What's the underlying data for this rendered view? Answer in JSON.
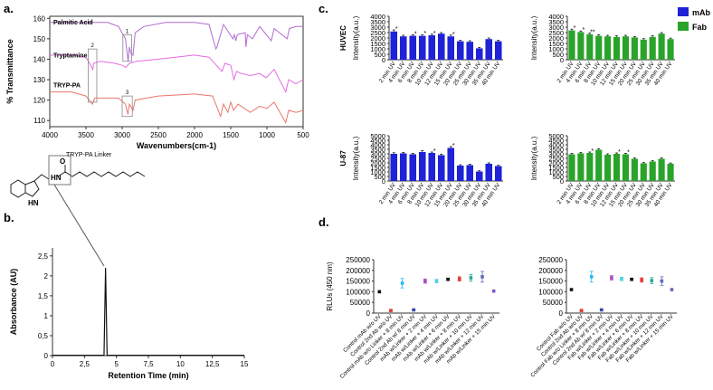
{
  "panel_labels": {
    "a": "a.",
    "b": "b.",
    "c": "c.",
    "d": "d."
  },
  "legend": [
    {
      "label": "mAb",
      "color": "#1f22d6"
    },
    {
      "label": "Fab",
      "color": "#2aa32a"
    }
  ],
  "colors": {
    "mab": "#1f22d6",
    "fab": "#2aa32a",
    "ftir_pa": "#b26bd1",
    "ftir_tryp": "#e36be0",
    "ftir_tryppa": "#e9776b"
  },
  "chart_data": [
    {
      "id": "ftir",
      "type": "line",
      "xlabel": "Wavenumbers(cm-1)",
      "ylabel": "% Transmittance",
      "xticks": [
        4000,
        3500,
        3000,
        2500,
        2000,
        1500,
        1000,
        500
      ],
      "yticks": [
        110,
        120,
        130,
        140,
        150,
        160
      ],
      "xlim": [
        4000,
        500
      ],
      "ylim": [
        107,
        161
      ],
      "series": [
        {
          "name": "Palmitic Acid",
          "color": "#b26bd1",
          "points": [
            [
              4000,
              158
            ],
            [
              3600,
              158
            ],
            [
              3200,
              158
            ],
            [
              3050,
              156
            ],
            [
              2955,
              150
            ],
            [
              2918,
              139
            ],
            [
              2900,
              146
            ],
            [
              2880,
              143
            ],
            [
              2850,
              142
            ],
            [
              2820,
              153
            ],
            [
              2700,
              156
            ],
            [
              2400,
              158
            ],
            [
              2000,
              158
            ],
            [
              1800,
              157
            ],
            [
              1705,
              145
            ],
            [
              1690,
              146
            ],
            [
              1600,
              157
            ],
            [
              1470,
              150
            ],
            [
              1450,
              152
            ],
            [
              1430,
              149
            ],
            [
              1410,
              152
            ],
            [
              1300,
              153
            ],
            [
              1290,
              146
            ],
            [
              1270,
              152
            ],
            [
              1200,
              150
            ],
            [
              1100,
              156
            ],
            [
              940,
              149
            ],
            [
              900,
              155
            ],
            [
              720,
              150
            ],
            [
              690,
              155
            ],
            [
              600,
              156
            ],
            [
              500,
              156
            ]
          ]
        },
        {
          "name": "Tryptamine",
          "color": "#e36be0",
          "points": [
            [
              4000,
              142
            ],
            [
              3700,
              142
            ],
            [
              3500,
              141
            ],
            [
              3450,
              138
            ],
            [
              3405,
              135
            ],
            [
              3395,
              138
            ],
            [
              3300,
              139
            ],
            [
              3100,
              138
            ],
            [
              3000,
              137
            ],
            [
              2950,
              136
            ],
            [
              2900,
              138
            ],
            [
              2800,
              139
            ],
            [
              2500,
              140
            ],
            [
              2000,
              142
            ],
            [
              1800,
              141
            ],
            [
              1620,
              134
            ],
            [
              1580,
              138
            ],
            [
              1500,
              137
            ],
            [
              1455,
              130
            ],
            [
              1420,
              134
            ],
            [
              1350,
              133
            ],
            [
              1230,
              132
            ],
            [
              1100,
              133
            ],
            [
              1010,
              131
            ],
            [
              900,
              135
            ],
            [
              740,
              124
            ],
            [
              700,
              130
            ],
            [
              600,
              128
            ],
            [
              500,
              130
            ]
          ]
        },
        {
          "name": "TRYP-PA",
          "color": "#e9776b",
          "points": [
            [
              4000,
              124
            ],
            [
              3700,
              124
            ],
            [
              3500,
              122
            ],
            [
              3410,
              118
            ],
            [
              3380,
              121
            ],
            [
              3300,
              121
            ],
            [
              3050,
              121
            ],
            [
              2955,
              118
            ],
            [
              2920,
              113
            ],
            [
              2900,
              118
            ],
            [
              2850,
              115
            ],
            [
              2820,
              120
            ],
            [
              2500,
              122
            ],
            [
              2000,
              123
            ],
            [
              1750,
              122
            ],
            [
              1640,
              112
            ],
            [
              1600,
              118
            ],
            [
              1540,
              114
            ],
            [
              1500,
              119
            ],
            [
              1460,
              115
            ],
            [
              1400,
              118
            ],
            [
              1230,
              114
            ],
            [
              1100,
              117
            ],
            [
              1000,
              116
            ],
            [
              900,
              119
            ],
            [
              740,
              109
            ],
            [
              700,
              115
            ],
            [
              600,
              114
            ],
            [
              500,
              115
            ]
          ]
        }
      ],
      "annotations": [
        "1",
        "2",
        "3"
      ]
    },
    {
      "id": "hplc",
      "type": "line",
      "xlabel": "Retention Time (min)",
      "ylabel": "Absorbance (AU)",
      "xticks": [
        "0",
        "2,5",
        "5",
        "7,5",
        "10",
        "12,5",
        "15"
      ],
      "yticks": [
        "0",
        "0,5",
        "1",
        "1,5",
        "2",
        "2,5"
      ],
      "xlim": [
        0,
        15
      ],
      "ylim": [
        0,
        2.7
      ],
      "peak": {
        "x": 4.15,
        "y": 2.2
      },
      "compound_label": "TRYP-PA Linker"
    },
    {
      "id": "huvec-mab",
      "type": "bar",
      "row_label": "HUVEC",
      "ylabel": "Intensity(a.u.)",
      "color": "#1f22d6",
      "ylim": [
        0,
        4000
      ],
      "yticks": [
        "0",
        "500",
        "1000",
        "1500",
        "2000",
        "2500",
        "3000",
        "3500",
        "4000"
      ],
      "categories": [
        "2 min UV",
        "4 min UV",
        "6 min UV",
        "8 min UV",
        "10 min UV",
        "12 min UV",
        "15 min UV",
        "20 min UV",
        "25 min UV",
        "30 min UV",
        "35 min UV",
        "40 min UV"
      ],
      "values": [
        2600,
        2150,
        2200,
        2200,
        2250,
        2400,
        2150,
        1700,
        1650,
        1050,
        1900,
        1700
      ],
      "errors": [
        150,
        100,
        100,
        120,
        100,
        100,
        120,
        90,
        100,
        80,
        100,
        90
      ],
      "marks": [
        "*",
        "",
        "*",
        "*",
        "*",
        "",
        "*",
        "",
        "",
        "",
        "",
        ""
      ]
    },
    {
      "id": "huvec-fab",
      "type": "bar",
      "ylabel": "Intensity(a.u.)",
      "color": "#2aa32a",
      "ylim": [
        0,
        4000
      ],
      "yticks": [
        "0",
        "500",
        "1000",
        "1500",
        "2000",
        "2500",
        "3000",
        "3500",
        "4000"
      ],
      "categories": [
        "2 min UV",
        "4 min UV",
        "6 min UV",
        "8 min UV",
        "10 min UV",
        "12 min UV",
        "15 min UV",
        "20 min UV",
        "25 min UV",
        "30 min UV",
        "35 min UV",
        "40 min UV"
      ],
      "values": [
        2700,
        2550,
        2350,
        2200,
        2150,
        2100,
        2150,
        2050,
        1850,
        2100,
        2400,
        1900
      ],
      "errors": [
        120,
        100,
        100,
        100,
        100,
        100,
        100,
        90,
        90,
        100,
        100,
        90
      ],
      "marks": [
        "*",
        "*",
        "**",
        "",
        "",
        "",
        "",
        "",
        "",
        "",
        "",
        ""
      ]
    },
    {
      "id": "u87-mab",
      "type": "bar",
      "row_label": "U-87",
      "ylabel": "Intensity(a.u.)",
      "color": "#1f22d6",
      "ylim": [
        0,
        5000
      ],
      "yticks": [
        "0",
        "500",
        "1000",
        "1500",
        "2000",
        "2500",
        "3000",
        "3500",
        "4000",
        "4500",
        "5000"
      ],
      "categories": [
        "2 min UV",
        "4 min UV",
        "6 min UV",
        "8 min UV",
        "10 min UV",
        "12 min UV",
        "15 min UV",
        "20 min UV",
        "25 min UV",
        "30 min UV",
        "35 min UV",
        "40 min UV"
      ],
      "values": [
        3000,
        3050,
        2950,
        3200,
        3100,
        2850,
        3650,
        1700,
        1750,
        1050,
        1900,
        1650
      ],
      "errors": [
        120,
        100,
        100,
        150,
        100,
        120,
        150,
        100,
        100,
        80,
        100,
        90
      ],
      "marks": [
        "",
        "",
        "",
        "",
        "*",
        "",
        "*",
        "",
        "",
        "",
        "",
        ""
      ]
    },
    {
      "id": "u87-fab",
      "type": "bar",
      "ylabel": "Intensity(a.u.)",
      "color": "#2aa32a",
      "ylim": [
        0,
        5000
      ],
      "yticks": [
        "0",
        "500",
        "1000",
        "1500",
        "2000",
        "2500",
        "3000",
        "3500",
        "4000",
        "4500",
        "5000"
      ],
      "categories": [
        "2 min UV",
        "4 min UV",
        "6 min UV",
        "8 min UV",
        "10 min UV",
        "12 min UV",
        "15 min UV",
        "20 min UV",
        "25 min UV",
        "30 min UV",
        "35 min UV",
        "40 min UV"
      ],
      "values": [
        2950,
        3050,
        3100,
        3450,
        2900,
        3000,
        2950,
        2450,
        1950,
        2150,
        2450,
        1900
      ],
      "errors": [
        100,
        100,
        100,
        120,
        100,
        100,
        100,
        100,
        90,
        90,
        100,
        90
      ],
      "marks": [
        "",
        "",
        "*",
        "",
        "",
        "*",
        "*",
        "",
        "",
        "",
        "",
        ""
      ]
    },
    {
      "id": "rlu-mab",
      "type": "scatter",
      "ylabel": "RLUs (450 nm)",
      "ylim": [
        0,
        250000
      ],
      "yticks": [
        "0",
        "50000",
        "100000",
        "150000",
        "200000",
        "250000"
      ],
      "categories": [
        "Control mAb w/o UV",
        "Control 2nd Ab w/o UV",
        "Control mAb w/o Linker + 8 min UV",
        "Control 2nd Ab w/ 8 min UV",
        "mAb w/Linker + 2 min UV",
        "mAb w/Linker + 4 min UV",
        "mAb w/Linker + 6 min UV",
        "mAb w/Linker + 8 min UV",
        "mAb w/Linker + 10 min UV",
        "mAb w/Linker + 12 min UV",
        "mAb w/Linker + 15 min UV"
      ],
      "values": [
        100000,
        12000,
        140000,
        15000,
        150000,
        150000,
        158000,
        160000,
        165000,
        170000,
        103000
      ],
      "errors": [
        0,
        3000,
        22000,
        2000,
        10000,
        8000,
        5000,
        10000,
        16000,
        25000,
        0
      ],
      "colors": [
        "#111111",
        "#e53935",
        "#29b6f6",
        "#3949ab",
        "#ab47bc",
        "#4dd0e1",
        "#111111",
        "#e53935",
        "#26a69a",
        "#5c6bc0",
        "#7e57c2"
      ]
    },
    {
      "id": "rlu-fab",
      "type": "scatter",
      "ylim": [
        0,
        250000
      ],
      "yticks": [
        "0",
        "50000",
        "100000",
        "150000",
        "200000",
        "250000"
      ],
      "categories": [
        "Control Fab w/o UV",
        "Control 2nd Ab w/o UV",
        "Control Fab w/o Linker + 8 min UV",
        "Control 2nd Ab w/ 8 min UV",
        "Fab w/Linker + 2 min UV",
        "Fab w/Linker + 4 min UV",
        "Fab w/Linker + 6 min UV",
        "Fab w/Linker + 8 min UV",
        "Fab w/Linker + 10 min UV",
        "Fab w/Linker + 12 min UV",
        "Fab w/Linker + 15 min UV"
      ],
      "values": [
        110000,
        12000,
        170000,
        15000,
        165000,
        160000,
        158000,
        155000,
        152000,
        150000,
        110000
      ],
      "errors": [
        0,
        3000,
        25000,
        2000,
        10000,
        8000,
        5000,
        10000,
        14000,
        20000,
        0
      ],
      "colors": [
        "#111111",
        "#e53935",
        "#29b6f6",
        "#3949ab",
        "#ab47bc",
        "#4dd0e1",
        "#111111",
        "#e53935",
        "#26a69a",
        "#5c6bc0",
        "#7e57c2"
      ]
    }
  ]
}
